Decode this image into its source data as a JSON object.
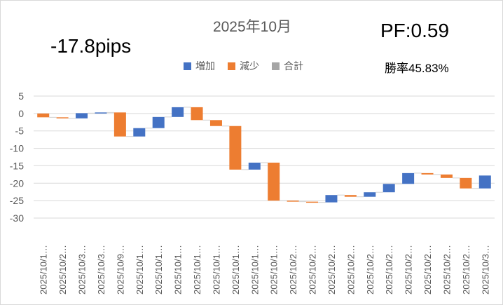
{
  "header": {
    "title": "2025年10月",
    "total_pips": "-17.8pips",
    "pf": "PF:0.59",
    "win_rate": "勝率45.83%"
  },
  "legend": [
    {
      "label": "増加",
      "color": "#4472C4"
    },
    {
      "label": "減少",
      "color": "#ED7D31"
    },
    {
      "label": "合計",
      "color": "#A5A5A5"
    }
  ],
  "chart_data": {
    "type": "waterfall",
    "title": "2025年10月",
    "ylim": [
      -30,
      5
    ],
    "yticks": [
      "5",
      "0",
      "-5",
      "-10",
      "-15",
      "-20",
      "-25",
      "-30"
    ],
    "ytick_values": [
      5,
      0,
      -5,
      -10,
      -15,
      -20,
      -25,
      -30
    ],
    "grid": true,
    "legend_position": "top",
    "categories": [
      "2025/10/1…",
      "2025/10/2…",
      "2025/10/3…",
      "2025/10/3…",
      "2025/10/9…",
      "2025/10/1…",
      "2025/10/1…",
      "2025/10/1…",
      "2025/10/1…",
      "2025/10/1…",
      "2025/10/1…",
      "2025/10/1…",
      "2025/10/1…",
      "2025/10/2…",
      "2025/10/2…",
      "2025/10/2…",
      "2025/10/2…",
      "2025/10/2…",
      "2025/10/2…",
      "2025/10/2…",
      "2025/10/2…",
      "2025/10/2…",
      "2025/10/2…",
      "2025/10/3…"
    ],
    "values": [
      -1.1,
      -0.3,
      1.5,
      0.2,
      -6.9,
      2.4,
      3.2,
      2.8,
      -3.7,
      -1.7,
      -12.5,
      2.0,
      -10.9,
      -0.3,
      -0.2,
      2.1,
      -0.5,
      1.3,
      2.4,
      3.1,
      -0.4,
      -1.0,
      -3.0,
      3.7
    ]
  }
}
